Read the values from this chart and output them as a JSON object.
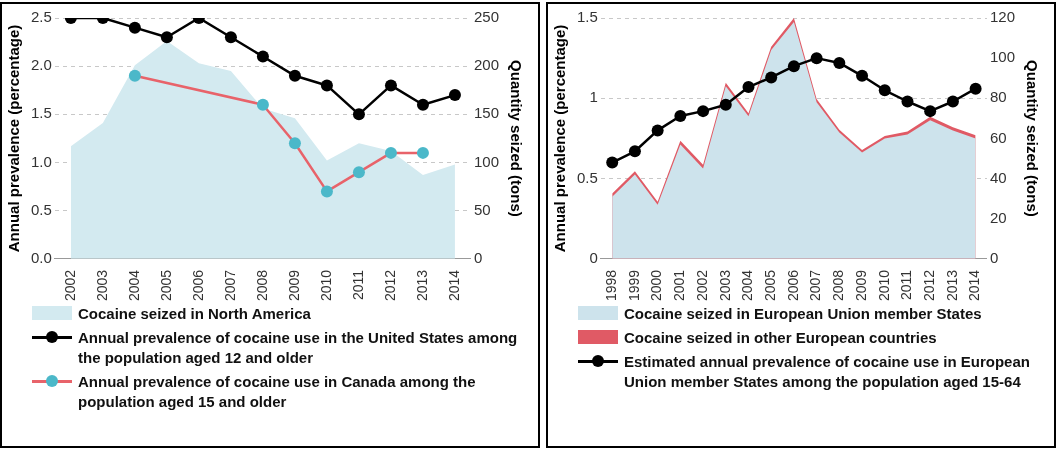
{
  "chart_data": [
    {
      "type": "line",
      "categories": [
        "2002",
        "2003",
        "2004",
        "2005",
        "2006",
        "2007",
        "2008",
        "2009",
        "2010",
        "2011",
        "2012",
        "2013",
        "2014"
      ],
      "ylabel": "Annual prevalence (percentage)",
      "y2label": "Quantity seized (tons)",
      "ylim": [
        0,
        2.5
      ],
      "yticks": [
        {
          "value": 0,
          "label": "0.0"
        },
        0.5,
        {
          "value": 1,
          "label": "1.0"
        },
        1.5,
        {
          "value": 2,
          "label": "2.0"
        },
        2.5
      ],
      "y2lim": [
        0,
        250
      ],
      "y2ticks": [
        0,
        50,
        100,
        150,
        200,
        250
      ],
      "grid": "y",
      "legend": "bottom",
      "marker": "circle",
      "line_style": "solid",
      "series": [
        {
          "type": "area",
          "axis": "y2",
          "marker": "none",
          "name": "Cocaine seized in North America",
          "color": "#d3eaf0",
          "values": [
            117,
            141,
            201,
            226,
            203,
            195,
            156,
            146,
            102,
            120,
            112,
            87,
            98
          ]
        },
        {
          "name": "Annual prevalence of cocaine use in the United States among the population aged 12 and older",
          "color": "#000000",
          "values": [
            2.5,
            2.5,
            2.4,
            2.3,
            2.5,
            2.3,
            2.1,
            1.9,
            1.8,
            1.5,
            1.8,
            1.6,
            1.7
          ]
        },
        {
          "name": "Annual prevalence of cocaine use in Canada among the population aged 15 and older",
          "color": "#e8636a",
          "colors": [
            "#4bb8c9",
            "#4bb8c9",
            "#4bb8c9",
            "#4bb8c9",
            "#4bb8c9",
            "#4bb8c9",
            "#4bb8c9",
            "#4bb8c9",
            "#4bb8c9",
            "#4bb8c9",
            "#4bb8c9",
            "#4bb8c9",
            "#4bb8c9"
          ],
          "values": [
            null,
            null,
            1.9,
            null,
            null,
            null,
            1.6,
            1.2,
            0.7,
            0.9,
            1.1,
            1.1,
            null
          ]
        }
      ]
    },
    {
      "type": "line",
      "categories": [
        "1998",
        "1999",
        "2000",
        "2001",
        "2002",
        "2003",
        "2004",
        "2005",
        "2006",
        "2007",
        "2008",
        "2009",
        "2010",
        "2011",
        "2012",
        "2013",
        "2014"
      ],
      "ylabel": "Annual prevalence (percentage)",
      "y2label": "Quantity seized (tons)",
      "ylim": [
        0,
        1.5
      ],
      "yticks": [
        0,
        0.5,
        1,
        1.5
      ],
      "y2lim": [
        0,
        120
      ],
      "y2ticks": [
        0,
        20,
        40,
        60,
        80,
        100,
        120
      ],
      "grid": "y",
      "legend": "bottom",
      "marker": "circle",
      "line_style": "solid",
      "series": [
        {
          "type": "area",
          "axis": "y2",
          "marker": "none",
          "name": "Cocaine seized in European Union member States",
          "color": "#cde3ec",
          "values": [
            31,
            42,
            27,
            57,
            45,
            86,
            71,
            104,
            118,
            78,
            63,
            53,
            60,
            62,
            69,
            64,
            60
          ]
        },
        {
          "type": "area",
          "axis": "y2",
          "marker": "none",
          "name": "Cocaine seized in other European countries",
          "color": "#e05a65",
          "values": [
            32.5,
            43.6,
            28.5,
            58.8,
            46.9,
            87.7,
            72.6,
            105.7,
            120,
            79.6,
            64.3,
            54.2,
            61.2,
            63.4,
            70.8,
            65.6,
            61.6
          ]
        },
        {
          "name": "Estimated annual prevalence of cocaine use in European Union member States among the population aged 15-64",
          "color": "#000000",
          "values": [
            0.6,
            0.67,
            0.8,
            0.89,
            0.92,
            0.96,
            1.07,
            1.13,
            1.2,
            1.25,
            1.22,
            1.14,
            1.05,
            0.98,
            0.92,
            0.98,
            1.06
          ]
        }
      ]
    }
  ]
}
